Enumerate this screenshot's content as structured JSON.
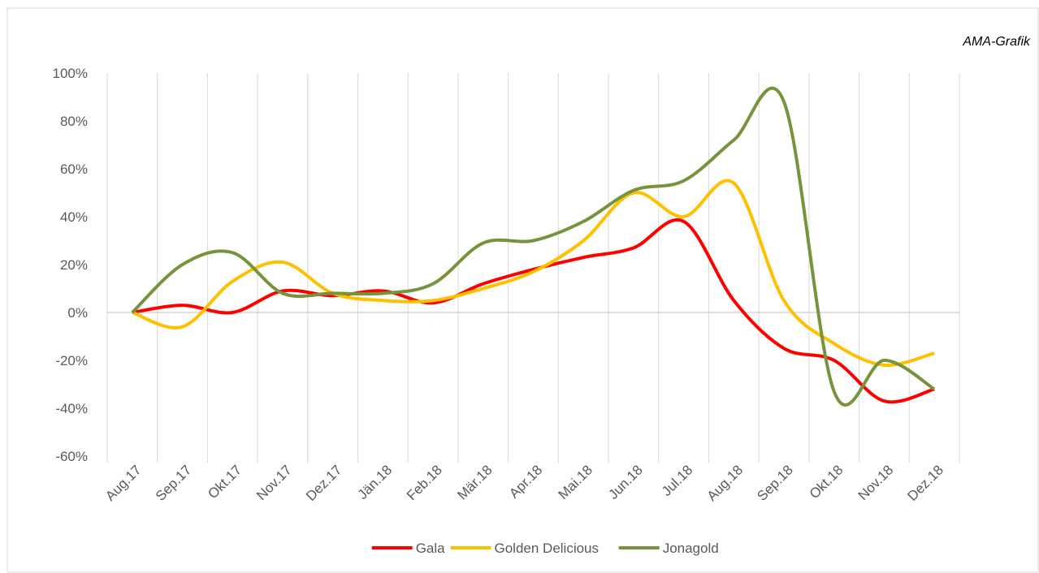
{
  "chart_data": {
    "type": "line",
    "annotation": "AMA-Grafik",
    "categories": [
      "Aug.17",
      "Sep.17",
      "Okt.17",
      "Nov.17",
      "Dez.17",
      "Jän.18",
      "Feb.18",
      "Mär.18",
      "Apr.18",
      "Mai.18",
      "Jun.18",
      "Jul.18",
      "Aug.18",
      "Sep.18",
      "Okt.18",
      "Nov.18",
      "Dez.18"
    ],
    "series": [
      {
        "name": "Gala",
        "color": "#ff0000",
        "values": [
          0,
          3,
          0,
          9,
          7,
          9,
          4,
          12,
          18,
          23,
          27,
          38,
          5,
          -15,
          -20,
          -37,
          -32
        ]
      },
      {
        "name": "Golden Delicious",
        "color": "#ffc000",
        "values": [
          0,
          -6,
          13,
          21,
          8,
          5,
          5,
          10,
          17,
          30,
          50,
          40,
          54,
          5,
          -13,
          -22,
          -17
        ]
      },
      {
        "name": "Jonagold",
        "color": "#77933c",
        "values": [
          0,
          20,
          25,
          8,
          8,
          8,
          12,
          29,
          30,
          38,
          51,
          55,
          72,
          88,
          -33,
          -20,
          -32
        ]
      }
    ],
    "ylim": [
      -60,
      100
    ],
    "yticks": [
      {
        "value": -60,
        "label": "-60%"
      },
      {
        "value": -40,
        "label": "-40%"
      },
      {
        "value": -20,
        "label": "-20%"
      },
      {
        "value": 0,
        "label": "0%"
      },
      {
        "value": 20,
        "label": "20%"
      },
      {
        "value": 40,
        "label": "40%"
      },
      {
        "value": 60,
        "label": "60%"
      },
      {
        "value": 80,
        "label": "80%"
      },
      {
        "value": 100,
        "label": "100%"
      }
    ],
    "grid": true,
    "legend": "bottom"
  }
}
